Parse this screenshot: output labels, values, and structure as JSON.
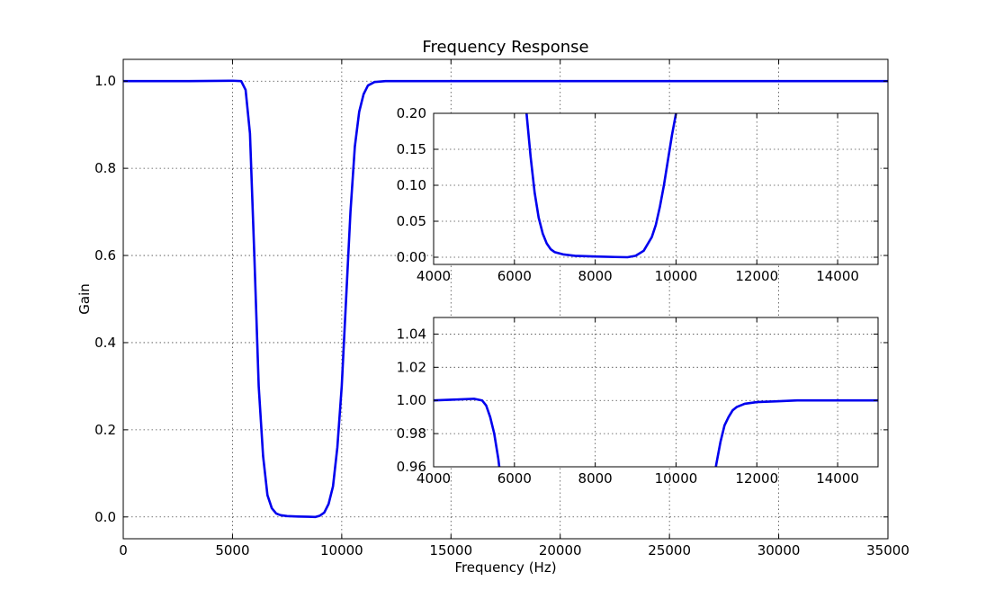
{
  "chart_data": [
    {
      "id": "main",
      "type": "line",
      "title": "Frequency Response",
      "xlabel": "Frequency (Hz)",
      "ylabel": "Gain",
      "xlim": [
        0,
        35000
      ],
      "ylim": [
        -0.05,
        1.05
      ],
      "xticks": [
        0,
        5000,
        10000,
        15000,
        20000,
        25000,
        30000,
        35000
      ],
      "xtick_labels": [
        "0",
        "5000",
        "10000",
        "15000",
        "20000",
        "25000",
        "30000",
        "35000"
      ],
      "yticks": [
        0.0,
        0.2,
        0.4,
        0.6,
        0.8,
        1.0
      ],
      "ytick_labels": [
        "0.0",
        "0.2",
        "0.4",
        "0.6",
        "0.8",
        "1.0"
      ],
      "grid": true,
      "color": "#0000ee",
      "series": [
        {
          "x": [
            0,
            3000,
            5000,
            5400,
            5600,
            5800,
            6000,
            6200,
            6400,
            6600,
            6800,
            7000,
            7200,
            7500,
            8000,
            8500,
            8800,
            9000,
            9200,
            9400,
            9600,
            9800,
            10000,
            10200,
            10400,
            10600,
            10800,
            11000,
            11200,
            11500,
            12000,
            15000,
            20000,
            25000,
            30000,
            35000
          ],
          "y": [
            1.0,
            1.0,
            1.001,
            1.0,
            0.98,
            0.88,
            0.6,
            0.3,
            0.14,
            0.05,
            0.02,
            0.008,
            0.004,
            0.002,
            0.001,
            0.0005,
            0.0,
            0.003,
            0.01,
            0.03,
            0.07,
            0.16,
            0.3,
            0.5,
            0.7,
            0.85,
            0.93,
            0.97,
            0.99,
            0.998,
            1.0,
            1.0,
            1.0,
            1.0,
            1.0,
            1.0
          ]
        }
      ]
    },
    {
      "id": "inset-stopband",
      "type": "line",
      "xlim": [
        4000,
        15000
      ],
      "ylim": [
        -0.01,
        0.2
      ],
      "xticks": [
        4000,
        6000,
        8000,
        10000,
        12000,
        14000
      ],
      "xtick_labels": [
        "4000",
        "6000",
        "8000",
        "10000",
        "12000",
        "14000"
      ],
      "yticks": [
        0.0,
        0.05,
        0.1,
        0.15,
        0.2
      ],
      "ytick_labels": [
        "0.00",
        "0.05",
        "0.10",
        "0.15",
        "0.20"
      ],
      "grid": true,
      "color": "#0000ee",
      "series": [
        {
          "x": [
            6300,
            6400,
            6500,
            6600,
            6700,
            6800,
            6900,
            7000,
            7200,
            7500,
            8000,
            8500,
            8800,
            9000,
            9200,
            9400,
            9500,
            9600,
            9700,
            9800,
            9900,
            10000,
            10050
          ],
          "y": [
            0.2,
            0.14,
            0.09,
            0.055,
            0.033,
            0.019,
            0.011,
            0.007,
            0.004,
            0.002,
            0.001,
            0.0003,
            0.0,
            0.002,
            0.009,
            0.028,
            0.045,
            0.07,
            0.1,
            0.135,
            0.17,
            0.2,
            0.22
          ]
        }
      ]
    },
    {
      "id": "inset-passband",
      "type": "line",
      "xlim": [
        4000,
        15000
      ],
      "ylim": [
        0.96,
        1.05
      ],
      "xticks": [
        4000,
        6000,
        8000,
        10000,
        12000,
        14000
      ],
      "xtick_labels": [
        "4000",
        "6000",
        "8000",
        "10000",
        "12000",
        "14000"
      ],
      "yticks": [
        0.96,
        0.98,
        1.0,
        1.02,
        1.04
      ],
      "ytick_labels": [
        "0.96",
        "0.98",
        "1.00",
        "1.02",
        "1.04"
      ],
      "grid": true,
      "color": "#0000ee",
      "series": [
        {
          "x": [
            4000,
            4500,
            5000,
            5200,
            5300,
            5400,
            5500,
            5600,
            5650
          ],
          "y": [
            1.0,
            1.0005,
            1.001,
            1.0,
            0.997,
            0.99,
            0.98,
            0.965,
            0.955
          ]
        },
        {
          "x": [
            10950,
            11000,
            11100,
            11200,
            11300,
            11400,
            11500,
            11700,
            12000,
            12500,
            13000,
            14000,
            15000
          ],
          "y": [
            0.955,
            0.962,
            0.975,
            0.985,
            0.99,
            0.994,
            0.996,
            0.998,
            0.999,
            0.9995,
            1.0,
            1.0,
            1.0
          ]
        }
      ]
    }
  ]
}
